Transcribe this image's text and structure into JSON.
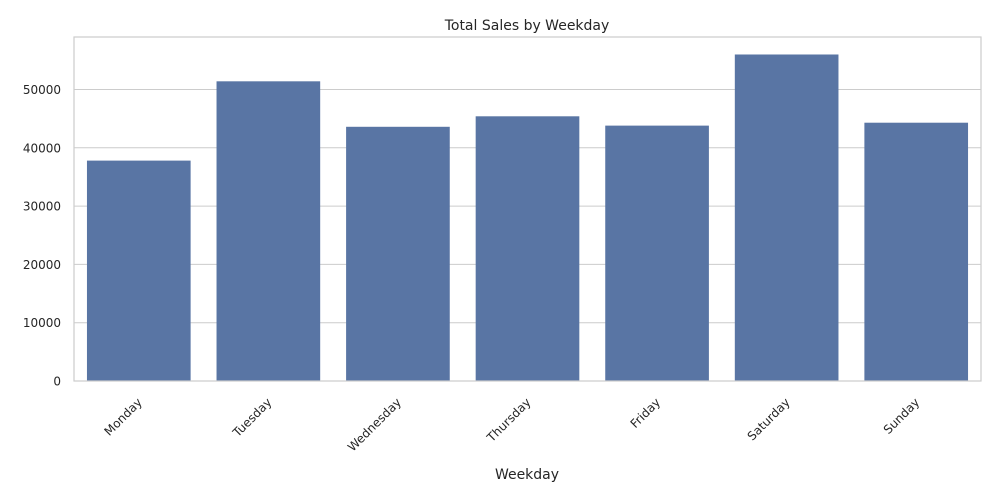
{
  "chart_data": {
    "type": "bar",
    "title": "Total Sales by Weekday",
    "xlabel": "Weekday",
    "ylabel": "",
    "categories": [
      "Monday",
      "Tuesday",
      "Wednesday",
      "Thursday",
      "Friday",
      "Saturday",
      "Sunday"
    ],
    "values": [
      37800,
      51400,
      43600,
      45400,
      43800,
      56000,
      44300
    ],
    "ylim": [
      0,
      59000
    ],
    "yticks": [
      0,
      10000,
      20000,
      30000,
      40000,
      50000
    ],
    "ytick_labels": [
      "0",
      "10000",
      "20000",
      "30000",
      "40000",
      "50000"
    ],
    "grid": "y",
    "colors": {
      "bar": "#5975a4",
      "grid": "#cccccc",
      "text": "#262626"
    }
  }
}
